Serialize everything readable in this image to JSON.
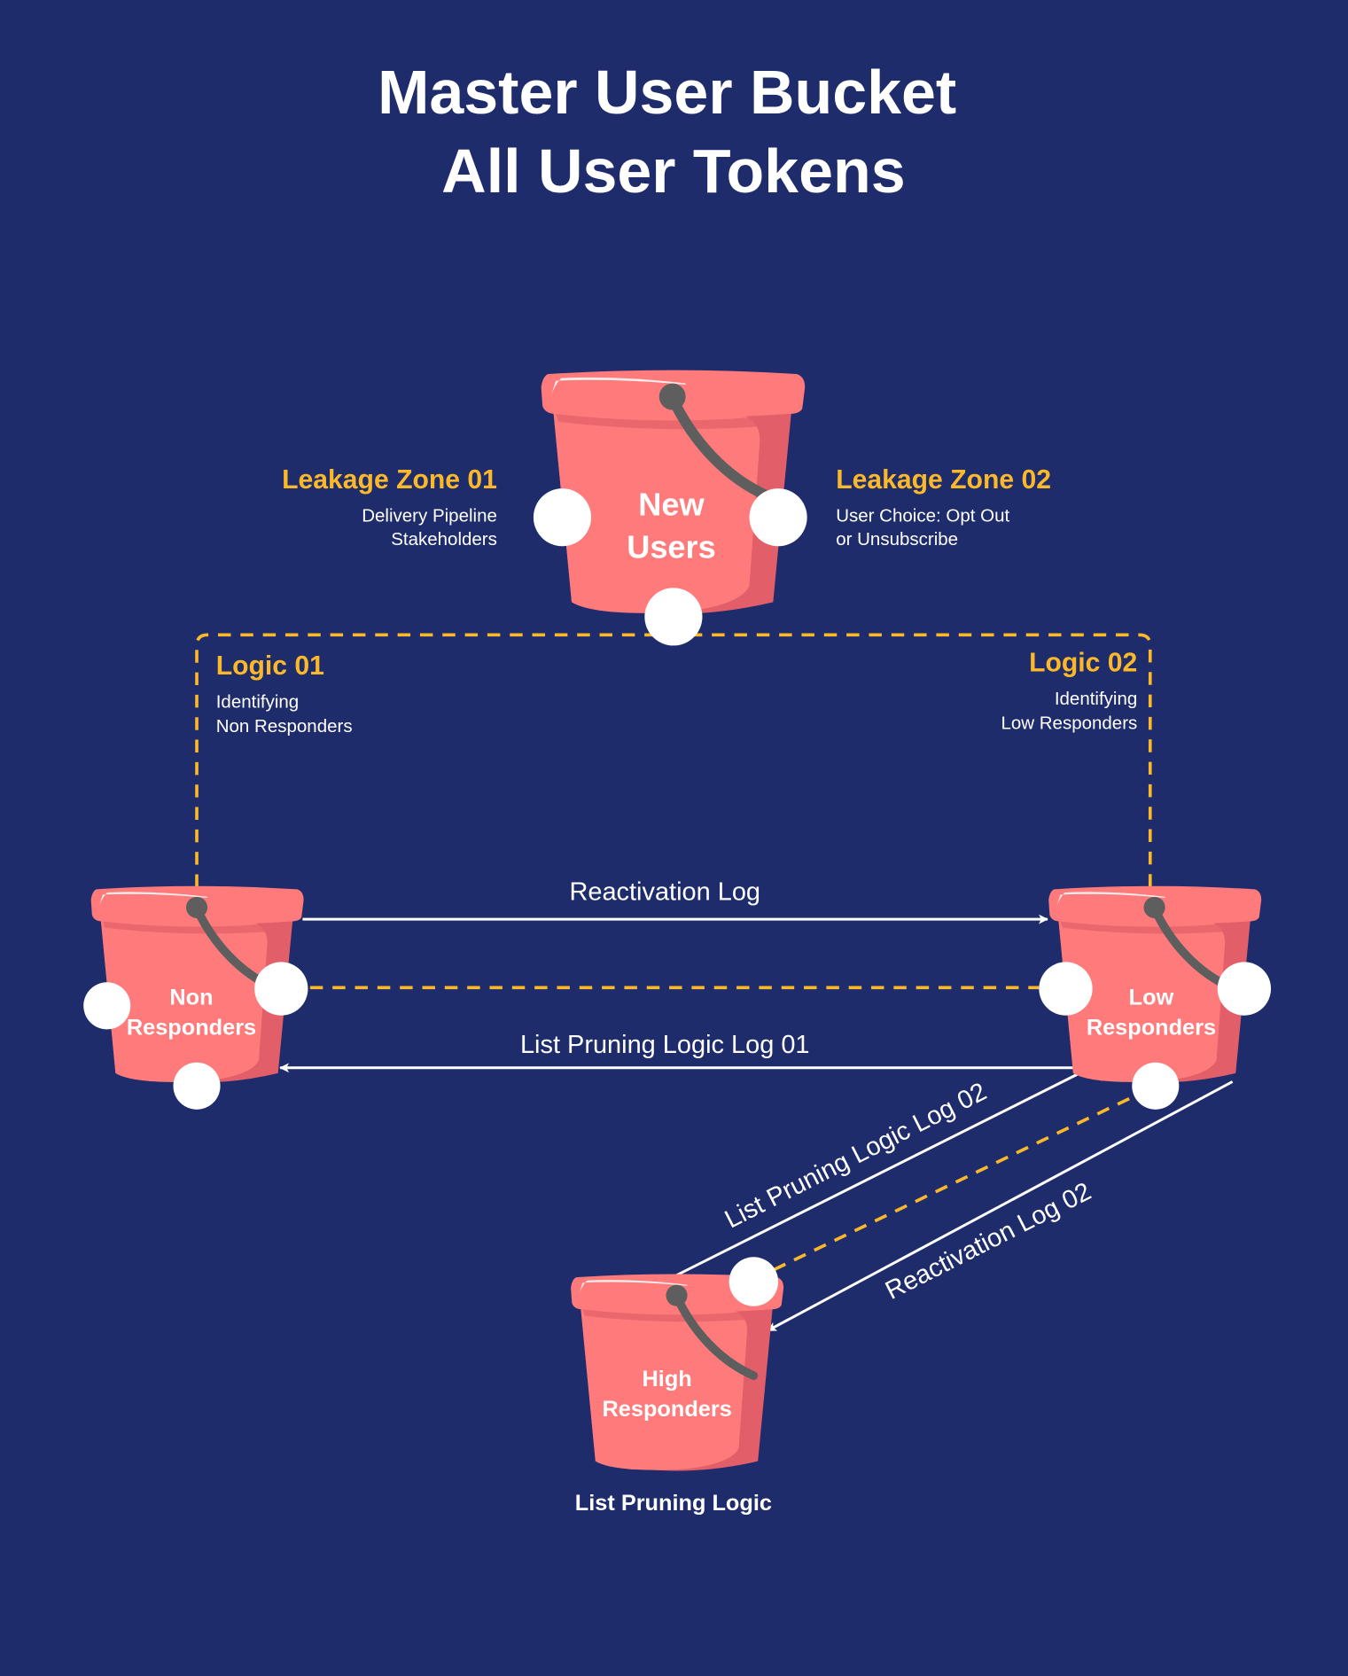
{
  "title": {
    "line1": "Master User Bucket",
    "line2": "All User Tokens"
  },
  "colors": {
    "background": "#1f2c6c",
    "bucket": "#ff7b7b",
    "bucket_shade": "#e25f69",
    "handle": "#5e5e5e",
    "accent": "#fbb829",
    "line": "#ffffff"
  },
  "buckets": {
    "new_users": {
      "line1": "New",
      "line2": "Users"
    },
    "non_responders": {
      "line1": "Non",
      "line2": "Responders"
    },
    "low_responders": {
      "line1": "Low",
      "line2": "Responders"
    },
    "high_responders": {
      "line1": "High",
      "line2": "Responders",
      "caption": "List Pruning Logic"
    }
  },
  "leakage_zones": [
    {
      "title": "Leakage Zone 01",
      "line1": "Delivery Pipeline",
      "line2": "Stakeholders"
    },
    {
      "title": "Leakage Zone 02",
      "line1": "User Choice: Opt Out",
      "line2": "or Unsubscribe"
    }
  ],
  "logic": [
    {
      "title": "Logic 01",
      "line1": "Identifying",
      "line2": "Non Responders"
    },
    {
      "title": "Logic 02",
      "line1": "Identifying",
      "line2": "Low Responders"
    }
  ],
  "flows": {
    "reactivation_log": "Reactivation Log",
    "list_pruning_log_01": "List Pruning Logic Log 01",
    "list_pruning_log_02": "List Pruning Logic Log 02",
    "reactivation_log_02": "Reactivation Log 02"
  }
}
